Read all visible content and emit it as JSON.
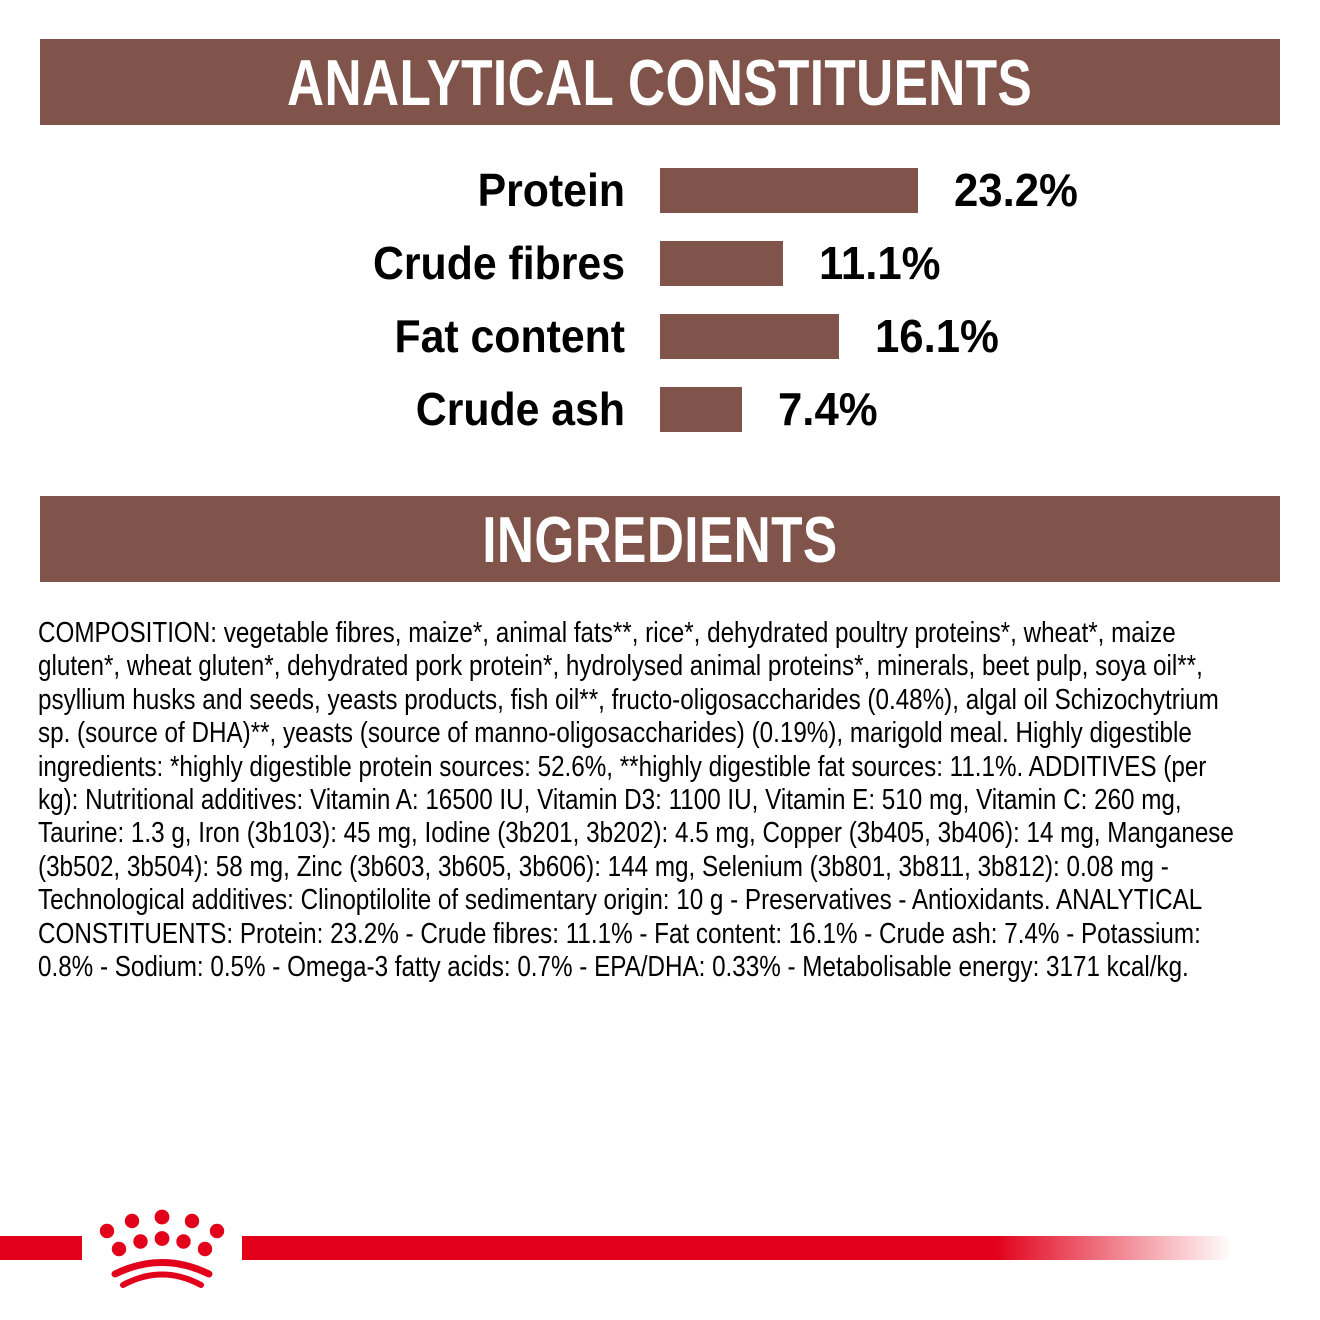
{
  "colors": {
    "brown": "#80544A",
    "red": "#E2001A",
    "text": "#000000",
    "banner_text": "#FFFFFF"
  },
  "analytical_banner": {
    "title": "ANALYTICAL CONSTITUENTS"
  },
  "chart_data": {
    "type": "bar",
    "orientation": "horizontal",
    "title": "ANALYTICAL CONSTITUENTS",
    "categories": [
      "Protein",
      "Crude fibres",
      "Fat content",
      "Crude ash"
    ],
    "values": [
      23.2,
      11.1,
      16.1,
      7.4
    ],
    "value_labels": [
      "23.2%",
      "11.1%",
      "16.1%",
      "7.4%"
    ],
    "unit": "%",
    "bar_color": "#80544A",
    "xlim": [
      0,
      25
    ],
    "grid": false,
    "legend": false
  },
  "ingredients_banner": {
    "title": "INGREDIENTS"
  },
  "ingredients_text": {
    "lines": [
      "COMPOSITION: vegetable fibres, maize*, animal fats**, rice*, dehydrated poultry proteins*, wheat*, maize",
      "gluten*, wheat gluten*, dehydrated pork protein*, hydrolysed animal proteins*, minerals, beet pulp, soya oil**,",
      "psyllium husks and seeds, yeasts products, fish oil**, fructo-oligosaccharides (0.48%), algal oil Schizochytrium",
      "sp. (source of DHA)**, yeasts (source of manno-oligosaccharides) (0.19%), marigold meal. Highly digestible",
      "ingredients: *highly digestible protein sources: 52.6%, **highly digestible fat sources: 11.1%. ADDITIVES (per",
      "kg): Nutritional additives: Vitamin A: 16500 IU, Vitamin D3: 1100 IU, Vitamin E: 510 mg, Vitamin C: 260 mg,",
      "Taurine: 1.3 g, Iron (3b103): 45 mg, Iodine (3b201, 3b202): 4.5 mg, Copper (3b405, 3b406): 14 mg, Manganese",
      "(3b502, 3b504): 58 mg, Zinc (3b603, 3b605, 3b606): 144 mg, Selenium (3b801, 3b811, 3b812): 0.08 mg -",
      "Technological additives: Clinoptilolite of sedimentary origin: 10 g - Preservatives - Antioxidants. ANALYTICAL",
      "CONSTITUENTS: Protein: 23.2% - Crude fibres: 11.1% - Fat content: 16.1% - Crude ash: 7.4% - Potassium:",
      "0.8% - Sodium: 0.5% - Omega-3 fatty acids: 0.7% - EPA/DHA: 0.33% - Metabolisable energy: 3171 kcal/kg."
    ]
  },
  "footer": {
    "logo": "royal-canin-crown-paw-logo"
  }
}
